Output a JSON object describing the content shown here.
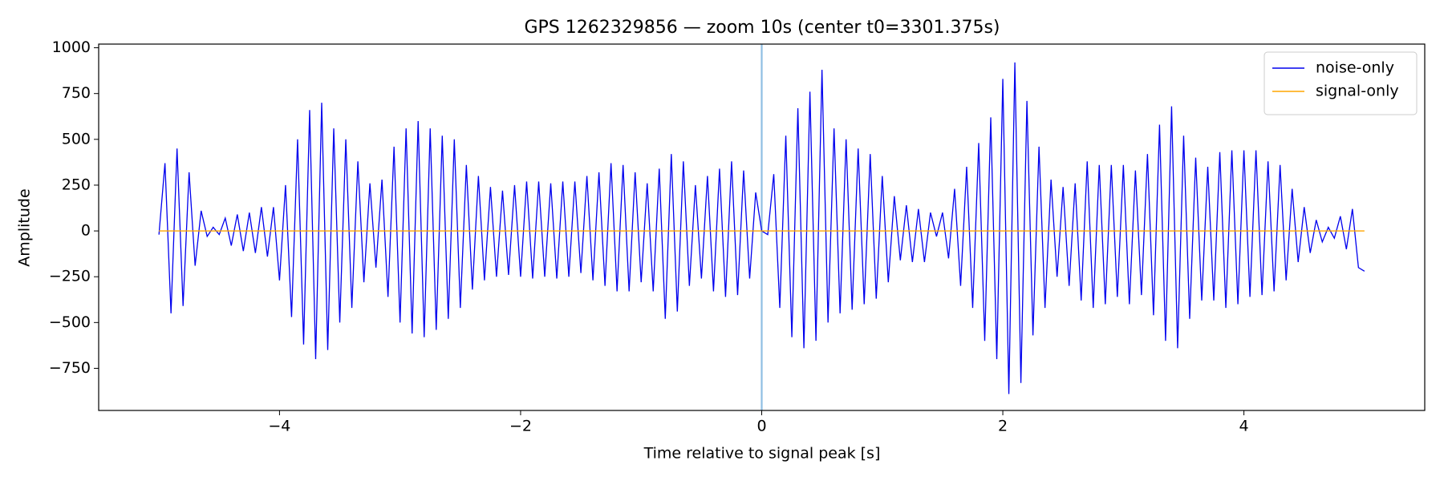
{
  "chart_data": {
    "type": "line",
    "title": "GPS 1262329856 — zoom 10s (center t0=3301.375s)",
    "x_label": "Time relative to signal peak [s]",
    "y_label": "Amplitude",
    "xlim": [
      -5.5,
      5.5
    ],
    "ylim": [
      -980,
      1020
    ],
    "xticks": [
      {
        "value": -4,
        "label": "−4"
      },
      {
        "value": -2,
        "label": "−2"
      },
      0,
      2,
      4
    ],
    "yticks": [
      {
        "value": -750,
        "label": "−750"
      },
      {
        "value": -500,
        "label": "−500"
      },
      {
        "value": -250,
        "label": "−250"
      },
      0,
      250,
      500,
      750,
      1000
    ],
    "vline": {
      "x": 0,
      "color": "#8fbfe3"
    },
    "legend": "upper right",
    "series": [
      {
        "name": "noise-only",
        "color": "#0000ee",
        "x": [
          -5,
          -4.95,
          -4.9,
          -4.85,
          -4.8,
          -4.75,
          -4.7,
          -4.65,
          -4.6,
          -4.55,
          -4.5,
          -4.45,
          -4.4,
          -4.35,
          -4.3,
          -4.25,
          -4.2,
          -4.15,
          -4.1,
          -4.05,
          -4,
          -3.95,
          -3.9,
          -3.85,
          -3.8,
          -3.75,
          -3.7,
          -3.65,
          -3.6,
          -3.55,
          -3.5,
          -3.45,
          -3.4,
          -3.35,
          -3.3,
          -3.25,
          -3.2,
          -3.15,
          -3.1,
          -3.05,
          -3,
          -2.95,
          -2.9,
          -2.85,
          -2.8,
          -2.75,
          -2.7,
          -2.65,
          -2.6,
          -2.55,
          -2.5,
          -2.45,
          -2.4,
          -2.35,
          -2.3,
          -2.25,
          -2.2,
          -2.15,
          -2.1,
          -2.05,
          -2,
          -1.95,
          -1.9,
          -1.85,
          -1.8,
          -1.75,
          -1.7,
          -1.65,
          -1.6,
          -1.55,
          -1.5,
          -1.45,
          -1.4,
          -1.35,
          -1.3,
          -1.25,
          -1.2,
          -1.15,
          -1.1,
          -1.05,
          -1,
          -0.95,
          -0.9,
          -0.85,
          -0.8,
          -0.75,
          -0.7,
          -0.65,
          -0.6,
          -0.55,
          -0.5,
          -0.45,
          -0.4,
          -0.35,
          -0.3,
          -0.25,
          -0.2,
          -0.15,
          -0.1,
          -0.05,
          0,
          0.05,
          0.1,
          0.15,
          0.2,
          0.25,
          0.3,
          0.35,
          0.4,
          0.45,
          0.5,
          0.55,
          0.6,
          0.65,
          0.7,
          0.75,
          0.8,
          0.85,
          0.9,
          0.95,
          1,
          1.05,
          1.1,
          1.15,
          1.2,
          1.25,
          1.3,
          1.35,
          1.4,
          1.45,
          1.5,
          1.55,
          1.6,
          1.65,
          1.7,
          1.75,
          1.8,
          1.85,
          1.9,
          1.95,
          2,
          2.05,
          2.1,
          2.15,
          2.2,
          2.25,
          2.3,
          2.35,
          2.4,
          2.45,
          2.5,
          2.55,
          2.6,
          2.65,
          2.7,
          2.75,
          2.8,
          2.85,
          2.9,
          2.95,
          3,
          3.05,
          3.1,
          3.15,
          3.2,
          3.25,
          3.3,
          3.35,
          3.4,
          3.45,
          3.5,
          3.55,
          3.6,
          3.65,
          3.7,
          3.75,
          3.8,
          3.85,
          3.9,
          3.95,
          4,
          4.05,
          4.1,
          4.15,
          4.2,
          4.25,
          4.3,
          4.35,
          4.4,
          4.45,
          4.5,
          4.55,
          4.6,
          4.65,
          4.7,
          4.75,
          4.8,
          4.85,
          4.9,
          4.95,
          5
        ],
        "values": [
          -20,
          370,
          -450,
          450,
          -410,
          320,
          -190,
          110,
          -30,
          20,
          -20,
          70,
          -80,
          90,
          -110,
          100,
          -120,
          130,
          -140,
          130,
          -270,
          250,
          -470,
          500,
          -620,
          660,
          -700,
          700,
          -650,
          560,
          -500,
          500,
          -420,
          380,
          -280,
          260,
          -200,
          280,
          -360,
          460,
          -500,
          560,
          -560,
          600,
          -580,
          560,
          -540,
          520,
          -480,
          500,
          -420,
          360,
          -320,
          300,
          -270,
          240,
          -250,
          220,
          -240,
          250,
          -250,
          270,
          -260,
          270,
          -250,
          260,
          -260,
          270,
          -250,
          270,
          -230,
          300,
          -270,
          320,
          -300,
          370,
          -330,
          360,
          -330,
          320,
          -280,
          260,
          -330,
          340,
          -480,
          420,
          -440,
          380,
          -300,
          250,
          -260,
          300,
          -330,
          340,
          -360,
          380,
          -350,
          330,
          -260,
          210,
          0,
          -20,
          310,
          -420,
          520,
          -580,
          670,
          -640,
          760,
          -600,
          880,
          -500,
          560,
          -450,
          500,
          -430,
          450,
          -400,
          420,
          -370,
          300,
          -280,
          190,
          -160,
          140,
          -170,
          120,
          -170,
          100,
          -30,
          100,
          -150,
          230,
          -300,
          350,
          -420,
          480,
          -600,
          620,
          -700,
          830,
          -890,
          920,
          -830,
          710,
          -570,
          460,
          -420,
          280,
          -250,
          240,
          -300,
          260,
          -380,
          380,
          -420,
          360,
          -400,
          360,
          -360,
          360,
          -400,
          330,
          -350,
          420,
          -460,
          580,
          -600,
          680,
          -640,
          520,
          -480,
          400,
          -380,
          350,
          -380,
          430,
          -420,
          440,
          -400,
          440,
          -360,
          440,
          -350,
          380,
          -330,
          360,
          -270,
          230,
          -170,
          130,
          -120,
          60,
          -60,
          20,
          -40,
          80,
          -100,
          120,
          -200,
          -220
        ]
      },
      {
        "name": "signal-only",
        "color": "#ffa500",
        "x": [
          -5,
          5
        ],
        "values": [
          0,
          0
        ]
      }
    ]
  }
}
